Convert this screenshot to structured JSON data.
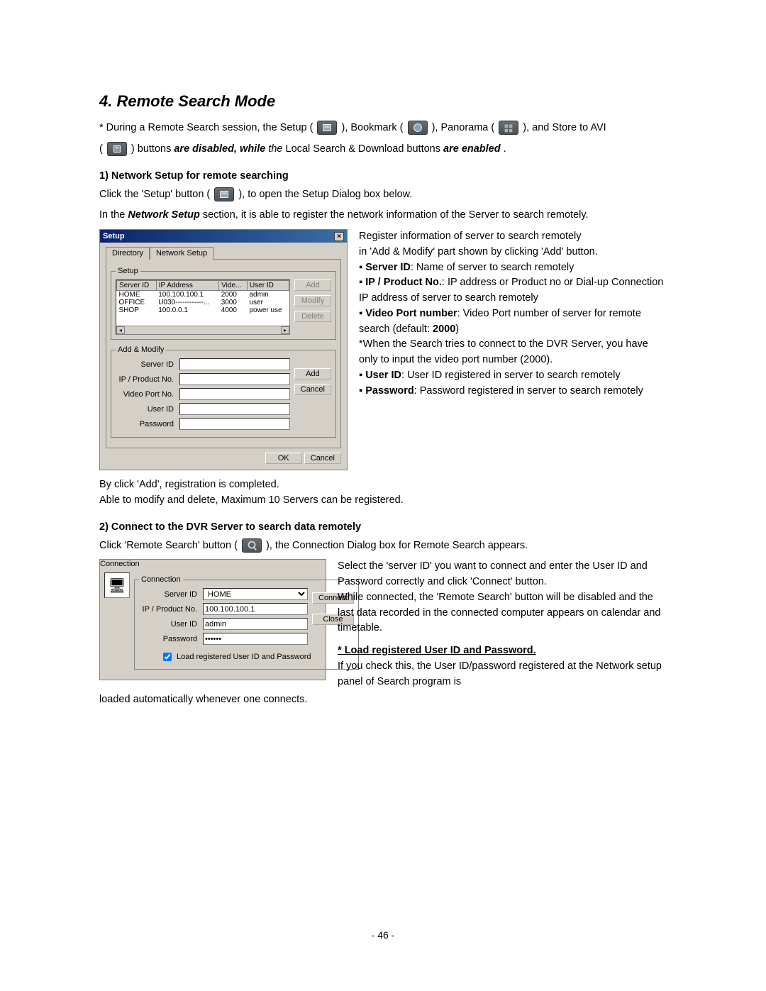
{
  "heading": "4. Remote Search Mode",
  "intro": {
    "p1_a": "* During a Remote Search session, the Setup (",
    "p1_b": "), Bookmark (",
    "p1_c": "), Panorama (",
    "p1_d": "), and Store to AVI",
    "p2_a": "(",
    "p2_b": ") buttons ",
    "p2_c": "are disabled, while",
    "p2_d": " the",
    "p2_e": " Local Search & Download buttons ",
    "p2_f": "are enabled",
    "p2_g": "."
  },
  "section1": {
    "title": "1) Network Setup for remote searching",
    "p1_a": "Click the 'Setup' button (",
    "p1_b": "), to open the Setup Dialog box below.",
    "p2_a": "In the ",
    "p2_b": "Network Setup",
    "p2_c": " section, it is able to register the network information of the Server to search remotely."
  },
  "setup_dialog": {
    "title": "Setup",
    "tabs": {
      "directory": "Directory",
      "network": "Network Setup"
    },
    "fs_setup": "Setup",
    "columns": [
      "Server ID",
      "IP Address",
      "Vide...",
      "User ID"
    ],
    "rows": [
      [
        "HOME",
        "100.100.100.1",
        "2000",
        "admin"
      ],
      [
        "OFFICE",
        "U030------------...",
        "3000",
        "user"
      ],
      [
        "SHOP",
        "100.0.0.1",
        "4000",
        "power use"
      ]
    ],
    "btn_add": "Add",
    "btn_modify": "Modify",
    "btn_delete": "Delete",
    "fs_addmod": "Add & Modify",
    "labels": {
      "server_id": "Server ID",
      "ip": "IP / Product No.",
      "port": "Video Port No.",
      "user": "User ID",
      "pass": "Password"
    },
    "btn_add2": "Add",
    "btn_cancel2": "Cancel",
    "btn_ok": "OK",
    "btn_cancel": "Cancel"
  },
  "setup_side": {
    "l1": "Register information of server to search remotely",
    "l2": "in 'Add & Modify' part shown by clicking 'Add' button.",
    "b1": "Server ID",
    "t1": ": Name of server to search remotely",
    "b2": "IP / Product No.",
    "t2": ": IP address or Product no or Dial-up Connection IP address of server to search remotely",
    "b3": "Video Port number",
    "t3": ": Video Port number of server for remote search (default: ",
    "t3b": "2000",
    "t3c": ")",
    "t4": "*When the Search tries to connect to the DVR Server, you have only to input the video port number (2000).",
    "b5": "User ID",
    "t5": ": User ID registered in server to search remotely",
    "b6": "Password",
    "t6": ": Password registered in server to search remotely"
  },
  "after_setup": {
    "l1": "By click 'Add', registration is completed.",
    "l2": "Able to modify and delete, Maximum 10 Servers can be registered."
  },
  "section2": {
    "title": "2) Connect to the DVR Server to search data remotely",
    "p1_a": "Click 'Remote Search' button (",
    "p1_b": "), the Connection Dialog box for Remote Search appears."
  },
  "conn_dialog": {
    "title": "Connection",
    "fs": "Connection",
    "labels": {
      "server_id": "Server ID",
      "ip": "IP / Product No.",
      "user": "User ID",
      "pass": "Password"
    },
    "values": {
      "server_id": "HOME",
      "ip": "100.100.100.1",
      "user": "admin",
      "pass": "******"
    },
    "btn_connect": "Connect",
    "btn_close": "Close",
    "checkbox": "Load registered User ID and Password"
  },
  "conn_side": {
    "l1": "Select the 'server ID' you want to connect and enter the User ID and Password correctly and click 'Connect' button.",
    "l2": "While connected, the 'Remote Search' button will be disabled and the last data recorded in the connected computer appears on calendar and timetable.",
    "h": "* Load registered User ID and Password.",
    "l3": "If you check this, the User ID/password registered at the Network setup panel of Search program is"
  },
  "after_conn": "loaded automatically whenever one connects.",
  "page_num": "- 46 -"
}
